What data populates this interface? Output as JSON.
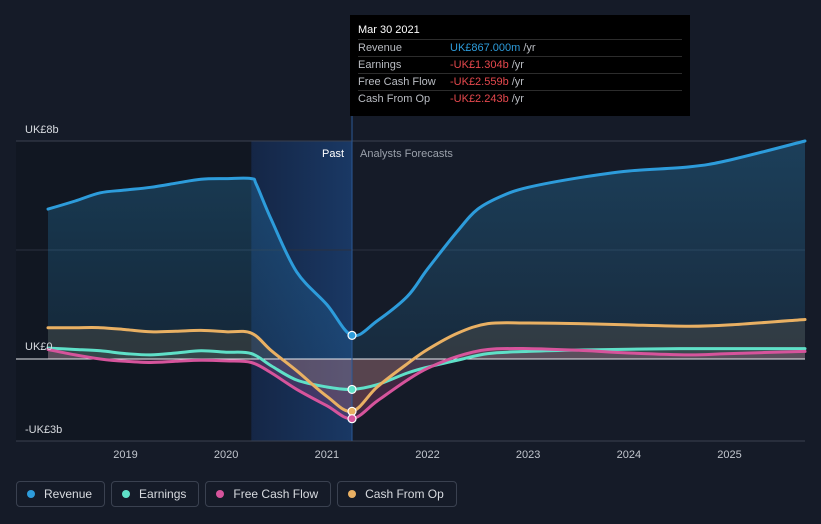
{
  "tooltip": {
    "date": "Mar 30 2021",
    "rows": [
      {
        "label": "Revenue",
        "value": "UK£867.000m",
        "unit": "/yr",
        "color": "#2d9cdb"
      },
      {
        "label": "Earnings",
        "value": "-UK£1.304b",
        "unit": "/yr",
        "color": "#e5484d"
      },
      {
        "label": "Free Cash Flow",
        "value": "-UK£2.559b",
        "unit": "/yr",
        "color": "#e5484d"
      },
      {
        "label": "Cash From Op",
        "value": "-UK£2.243b",
        "unit": "/yr",
        "color": "#e5484d"
      }
    ]
  },
  "chart_data": {
    "type": "line",
    "y_tick_labels": [
      "UK£8b",
      "UK£0",
      "-UK£3b"
    ],
    "ylim": [
      -3,
      8
    ],
    "xlim": [
      2018.23,
      2025.75
    ],
    "x_tick_labels": [
      "2019",
      "2020",
      "2021",
      "2022",
      "2023",
      "2024",
      "2025"
    ],
    "x_ticks": [
      2019,
      2020,
      2021,
      2022,
      2023,
      2024,
      2025
    ],
    "past_label": "Past",
    "forecast_label": "Analysts Forecasts",
    "divider_x": 2021.25,
    "highlight_start": 2020.25,
    "grid": true,
    "series": [
      {
        "name": "Revenue",
        "color": "#2d9cdb",
        "points": [
          [
            2018.23,
            5.5
          ],
          [
            2018.5,
            5.8
          ],
          [
            2018.75,
            6.1
          ],
          [
            2019,
            6.2
          ],
          [
            2019.25,
            6.3
          ],
          [
            2019.5,
            6.45
          ],
          [
            2019.75,
            6.6
          ],
          [
            2020,
            6.62
          ],
          [
            2020.25,
            6.62
          ],
          [
            2020.3,
            6.4
          ],
          [
            2020.45,
            5.1
          ],
          [
            2020.7,
            3.2
          ],
          [
            2021.0,
            2.0
          ],
          [
            2021.25,
            0.867
          ],
          [
            2021.5,
            1.4
          ],
          [
            2021.8,
            2.3
          ],
          [
            2022.0,
            3.3
          ],
          [
            2022.3,
            4.7
          ],
          [
            2022.5,
            5.5
          ],
          [
            2022.75,
            6.0
          ],
          [
            2023,
            6.3
          ],
          [
            2023.5,
            6.65
          ],
          [
            2024,
            6.9
          ],
          [
            2024.6,
            7.05
          ],
          [
            2025,
            7.3
          ],
          [
            2025.75,
            8.0
          ]
        ]
      },
      {
        "name": "Earnings",
        "color": "#5fe0c8",
        "points": [
          [
            2018.23,
            0.4
          ],
          [
            2018.5,
            0.35
          ],
          [
            2018.75,
            0.3
          ],
          [
            2019,
            0.2
          ],
          [
            2019.25,
            0.15
          ],
          [
            2019.5,
            0.22
          ],
          [
            2019.75,
            0.3
          ],
          [
            2020,
            0.25
          ],
          [
            2020.25,
            0.2
          ],
          [
            2020.45,
            -0.3
          ],
          [
            2020.7,
            -0.9
          ],
          [
            2021.0,
            -1.2
          ],
          [
            2021.25,
            -1.304
          ],
          [
            2021.5,
            -1.1
          ],
          [
            2021.8,
            -0.6
          ],
          [
            2022.0,
            -0.35
          ],
          [
            2022.3,
            -0.05
          ],
          [
            2022.6,
            0.2
          ],
          [
            2023,
            0.28
          ],
          [
            2023.5,
            0.33
          ],
          [
            2024,
            0.36
          ],
          [
            2024.5,
            0.38
          ],
          [
            2025,
            0.38
          ],
          [
            2025.75,
            0.38
          ]
        ]
      },
      {
        "name": "Free Cash Flow",
        "color": "#d6549c",
        "points": [
          [
            2018.23,
            0.35
          ],
          [
            2018.5,
            0.15
          ],
          [
            2018.75,
            0.0
          ],
          [
            2019,
            -0.1
          ],
          [
            2019.25,
            -0.15
          ],
          [
            2019.5,
            -0.1
          ],
          [
            2019.75,
            -0.05
          ],
          [
            2020,
            -0.08
          ],
          [
            2020.25,
            -0.15
          ],
          [
            2020.45,
            -0.6
          ],
          [
            2020.7,
            -1.3
          ],
          [
            2021.0,
            -2.0
          ],
          [
            2021.25,
            -2.559
          ],
          [
            2021.5,
            -1.8
          ],
          [
            2021.8,
            -0.9
          ],
          [
            2022.0,
            -0.4
          ],
          [
            2022.3,
            0.1
          ],
          [
            2022.6,
            0.35
          ],
          [
            2023,
            0.38
          ],
          [
            2023.5,
            0.32
          ],
          [
            2024,
            0.22
          ],
          [
            2024.6,
            0.15
          ],
          [
            2025,
            0.2
          ],
          [
            2025.75,
            0.28
          ]
        ]
      },
      {
        "name": "Cash From Op",
        "color": "#e9b063",
        "points": [
          [
            2018.23,
            1.15
          ],
          [
            2018.5,
            1.15
          ],
          [
            2018.75,
            1.15
          ],
          [
            2019,
            1.08
          ],
          [
            2019.25,
            1.0
          ],
          [
            2019.5,
            1.02
          ],
          [
            2019.75,
            1.05
          ],
          [
            2020,
            1.0
          ],
          [
            2020.25,
            0.95
          ],
          [
            2020.45,
            0.3
          ],
          [
            2020.7,
            -0.5
          ],
          [
            2021.0,
            -1.6
          ],
          [
            2021.25,
            -2.243
          ],
          [
            2021.5,
            -1.2
          ],
          [
            2021.8,
            -0.2
          ],
          [
            2022.0,
            0.35
          ],
          [
            2022.3,
            0.95
          ],
          [
            2022.6,
            1.3
          ],
          [
            2023,
            1.32
          ],
          [
            2023.5,
            1.3
          ],
          [
            2024,
            1.25
          ],
          [
            2024.6,
            1.2
          ],
          [
            2025,
            1.25
          ],
          [
            2025.75,
            1.45
          ]
        ]
      }
    ],
    "markers": [
      {
        "series": "Revenue",
        "x": 2021.25,
        "y": 0.867
      },
      {
        "series": "Earnings",
        "x": 2021.25,
        "y": -1.304
      },
      {
        "series": "Cash From Op",
        "x": 2021.25,
        "y": -2.243
      },
      {
        "series": "Free Cash Flow",
        "x": 2021.25,
        "y": -2.559
      }
    ]
  },
  "legend": [
    {
      "label": "Revenue",
      "color": "#2d9cdb"
    },
    {
      "label": "Earnings",
      "color": "#5fe0c8"
    },
    {
      "label": "Free Cash Flow",
      "color": "#d6549c"
    },
    {
      "label": "Cash From Op",
      "color": "#e9b063"
    }
  ]
}
